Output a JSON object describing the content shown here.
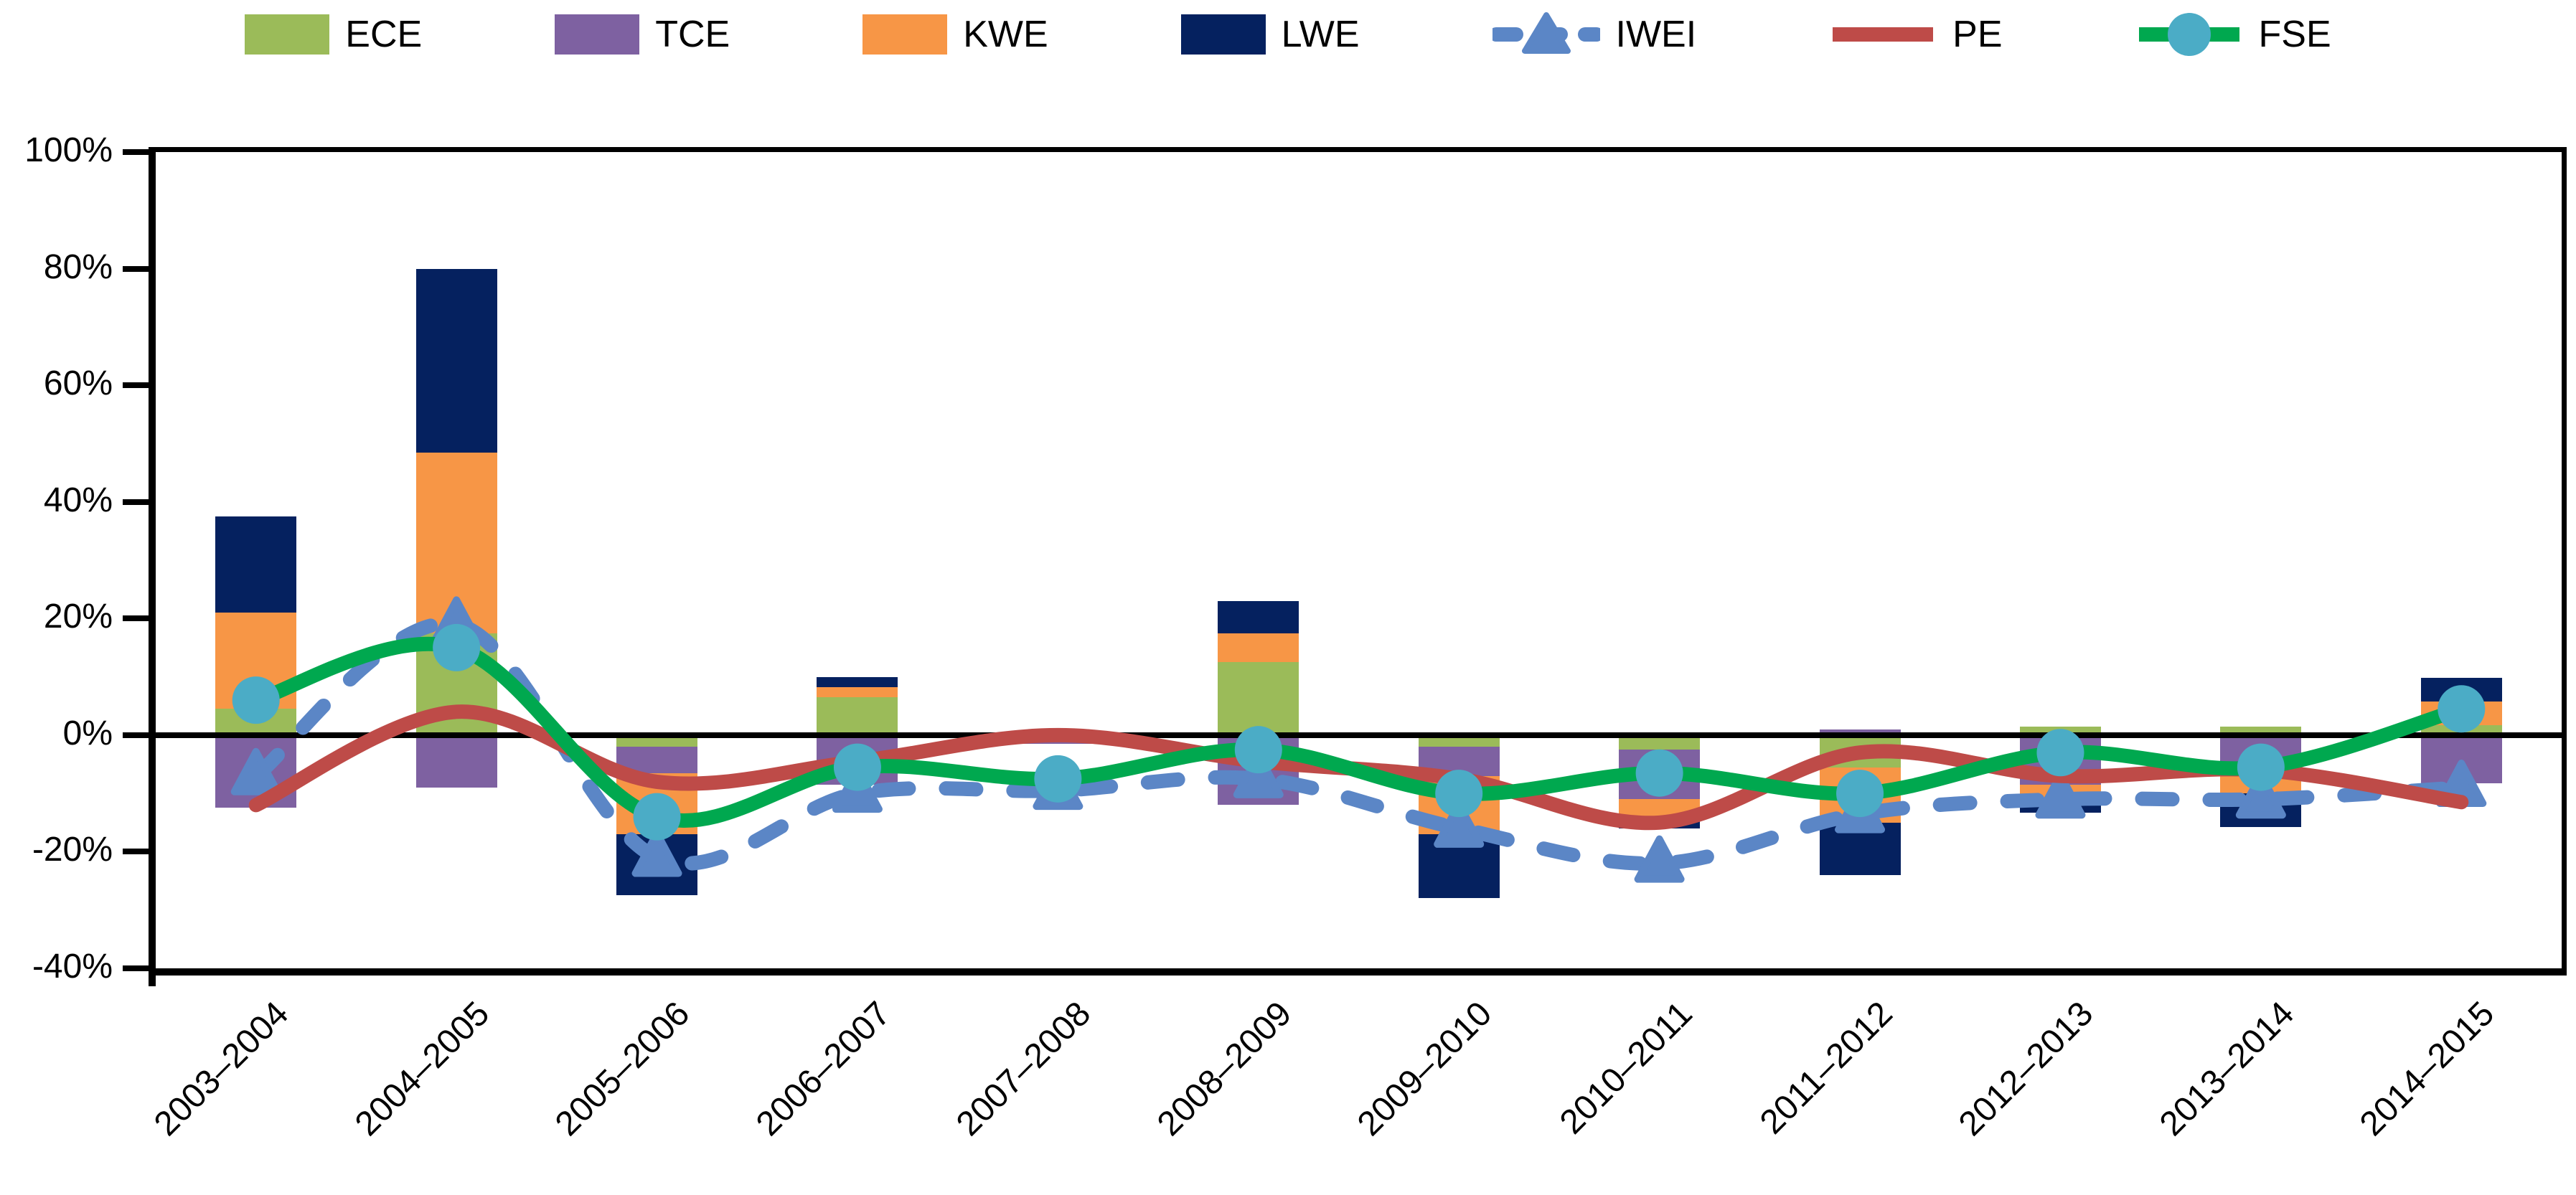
{
  "title": "",
  "legend": {
    "items": [
      {
        "label": "ECE",
        "type": "bar",
        "color": "#9BBB59"
      },
      {
        "label": "TCE",
        "type": "bar",
        "color": "#7E61A1"
      },
      {
        "label": "KWE",
        "type": "bar",
        "color": "#F79646"
      },
      {
        "label": "LWE",
        "type": "bar",
        "color": "#05215F"
      },
      {
        "label": "IWEI",
        "type": "line",
        "dashed": true,
        "marker": "triangle",
        "color": "#5B86C6",
        "marker_color": "#5B86C6"
      },
      {
        "label": "PE",
        "type": "line",
        "dashed": false,
        "marker": "none",
        "color": "#BE4B48",
        "marker_color": "#BE4B48"
      },
      {
        "label": "FSE",
        "type": "line",
        "dashed": false,
        "marker": "circle",
        "color": "#00A84F",
        "marker_color": "#4BACC6"
      }
    ]
  },
  "chart_data": {
    "type": "bar",
    "subtype": "stacked-bars-with-lines",
    "categories": [
      "2003–2004",
      "2004–2005",
      "2005–2006",
      "2006–2007",
      "2007–2008",
      "2008–2009",
      "2009–2010",
      "2010–2011",
      "2011–2012",
      "2012–2013",
      "2013–2014",
      "2014–2015"
    ],
    "series": [
      {
        "name": "ECE",
        "kind": "bar",
        "color": "#9BBB59",
        "values": [
          4.5,
          17.5,
          -2.0,
          6.5,
          0,
          12.5,
          -2.0,
          -2.5,
          -5.5,
          1.5,
          1.5,
          1.7
        ]
      },
      {
        "name": "TCE",
        "kind": "bar",
        "color": "#7E61A1",
        "values": [
          -12.5,
          -9.0,
          -4.5,
          -8.5,
          -1.5,
          -12.0,
          -5.0,
          -8.5,
          1.0,
          -8.5,
          -6.5,
          -8.3
        ]
      },
      {
        "name": "KWE",
        "kind": "bar",
        "color": "#F79646",
        "values": [
          16.5,
          31.0,
          -10.5,
          1.7,
          0,
          5.0,
          -10.0,
          -3.0,
          -9.5,
          -3.0,
          -3.5,
          4.1
        ]
      },
      {
        "name": "LWE",
        "kind": "bar",
        "color": "#05215F",
        "values": [
          16.5,
          31.5,
          -10.5,
          1.8,
          0,
          5.5,
          -11.0,
          -2.0,
          -9.0,
          -1.8,
          -5.8,
          4.0
        ]
      },
      {
        "name": "IWEI",
        "kind": "line",
        "dashed": true,
        "marker": "triangle",
        "color": "#5B86C6",
        "marker_color": "#5B86C6",
        "values": [
          -7,
          19,
          -21,
          -10,
          -9.5,
          -7.5,
          -16,
          -22,
          -13.5,
          -11,
          -11,
          -9
        ]
      },
      {
        "name": "PE",
        "kind": "line",
        "dashed": false,
        "marker": "none",
        "color": "#BE4B48",
        "marker_color": "#BE4B48",
        "values": [
          -12,
          4,
          -8,
          -4.5,
          0,
          -4.5,
          -7.5,
          -15,
          -3,
          -7,
          -6,
          -11.5
        ]
      },
      {
        "name": "FSE",
        "kind": "line",
        "dashed": false,
        "marker": "circle",
        "color": "#00A84F",
        "marker_color": "#4BACC6",
        "values": [
          6,
          15,
          -14,
          -5.5,
          -7.5,
          -2.5,
          -10,
          -6.5,
          -10,
          -3,
          -5.5,
          4.5
        ]
      }
    ],
    "xlabel": "",
    "ylabel": "",
    "y_ticks": [
      "100%",
      "80%",
      "60%",
      "40%",
      "20%",
      "0%",
      "-20%",
      "-40%"
    ],
    "ylim": [
      -40,
      100
    ],
    "y_step": 20,
    "grid": false,
    "zero_line": true,
    "legend_position": "top",
    "axis_color": "#000000",
    "background_color": "#FFFFFF"
  }
}
